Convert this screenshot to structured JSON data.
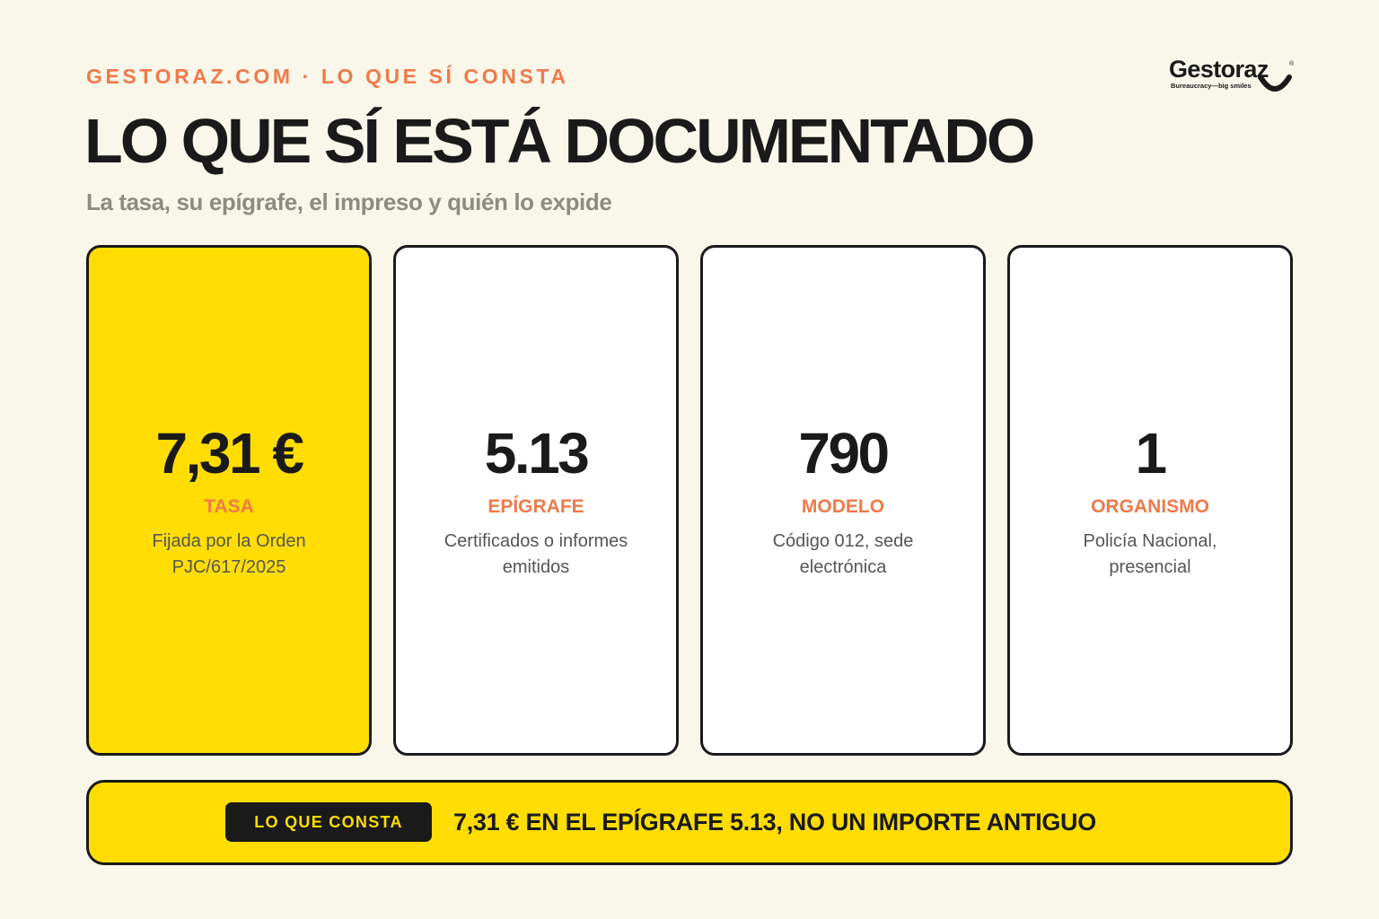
{
  "header": {
    "eyebrow": "GESTORAZ.COM · LO QUE SÍ CONSTA",
    "title": "LO QUE SÍ ESTÁ DOCUMENTADO",
    "subtitle": "La tasa, su epígrafe, el impreso y quién lo expide"
  },
  "logo": {
    "wordmark": "Gestoraz",
    "registered": "®",
    "tagline": "Bureaucracy—big smiles"
  },
  "cards": [
    {
      "number": "7,31 €",
      "label": "TASA",
      "desc_line1": "Fijada por la Orden",
      "desc_line2": "PJC/617/2025"
    },
    {
      "number": "5.13",
      "label": "EPÍGRAFE",
      "desc_line1": "Certificados o informes",
      "desc_line2": "emitidos"
    },
    {
      "number": "790",
      "label": "MODELO",
      "desc_line1": "Código 012, sede",
      "desc_line2": "electrónica"
    },
    {
      "number": "1",
      "label": "ORGANISMO",
      "desc_line1": "Policía Nacional,",
      "desc_line2": "presencial"
    }
  ],
  "banner": {
    "tag": "LO QUE CONSTA",
    "text": "7,31 € EN EL EPÍGRAFE 5.13, NO UN IMPORTE ANTIGUO"
  },
  "colors": {
    "background": "#f8f7ea",
    "accent_orange": "#f07a4a",
    "highlight_yellow": "#ffdd00",
    "ink": "#1a1a1a"
  }
}
